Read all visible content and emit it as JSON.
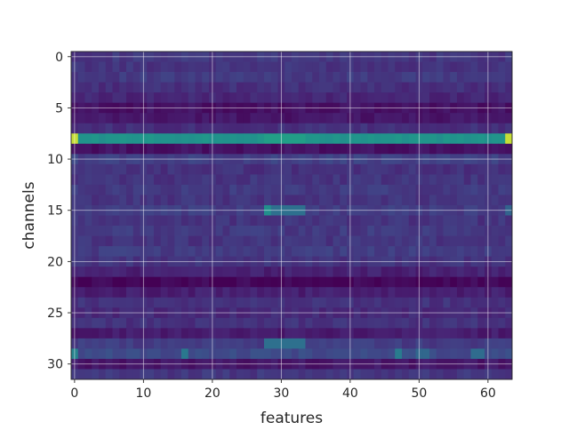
{
  "chart_data": {
    "type": "heatmap",
    "title": "",
    "xlabel": "features",
    "ylabel": "channels",
    "x_range": [
      0,
      63
    ],
    "y_range": [
      0,
      31
    ],
    "y_inverted": true,
    "xticks": [
      0,
      10,
      20,
      30,
      40,
      50,
      60
    ],
    "yticks": [
      0,
      5,
      10,
      15,
      20,
      25,
      30
    ],
    "grid": true,
    "colormap": "viridis",
    "value_range": [
      0,
      1
    ],
    "rows": 32,
    "columns": 64,
    "row_baseline": [
      0.2,
      0.19,
      0.21,
      0.17,
      0.14,
      0.06,
      0.08,
      0.17,
      0.64,
      0.06,
      0.24,
      0.18,
      0.19,
      0.21,
      0.19,
      0.22,
      0.19,
      0.21,
      0.19,
      0.22,
      0.19,
      0.12,
      0.02,
      0.11,
      0.18,
      0.15,
      0.18,
      0.1,
      0.22,
      0.28,
      0.08,
      0.2
    ],
    "highlights": [
      {
        "row": 8,
        "col_start": 0,
        "col_end": 0,
        "value": 0.95
      },
      {
        "row": 8,
        "col_start": 63,
        "col_end": 63,
        "value": 0.95
      },
      {
        "row": 8,
        "col_start": 28,
        "col_end": 33,
        "value": 0.7
      },
      {
        "row": 15,
        "col_start": 28,
        "col_end": 28,
        "value": 0.62
      },
      {
        "row": 15,
        "col_start": 29,
        "col_end": 33,
        "value": 0.46
      },
      {
        "row": 28,
        "col_start": 28,
        "col_end": 33,
        "value": 0.46
      },
      {
        "row": 29,
        "col_start": 0,
        "col_end": 0,
        "value": 0.55
      },
      {
        "row": 29,
        "col_start": 16,
        "col_end": 16,
        "value": 0.5
      },
      {
        "row": 29,
        "col_start": 47,
        "col_end": 47,
        "value": 0.52
      },
      {
        "row": 29,
        "col_start": 50,
        "col_end": 51,
        "value": 0.42
      },
      {
        "row": 29,
        "col_start": 58,
        "col_end": 59,
        "value": 0.44
      },
      {
        "row": 15,
        "col_start": 63,
        "col_end": 63,
        "value": 0.4
      }
    ]
  }
}
